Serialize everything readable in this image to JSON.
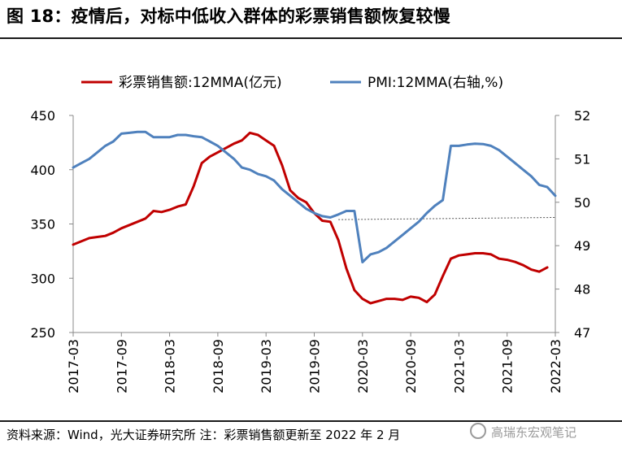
{
  "title": "图 18：疫情后，对标中低收入群体的彩票销售额恢复较慢",
  "source": "资料来源：Wind，光大证券研究所  注：彩票销售额更新至 2022 年 2 月",
  "watermark": "高瑞东宏观笔记",
  "chart_data": {
    "type": "line",
    "x_tick_labels": [
      "2017-03",
      "2017-09",
      "2018-03",
      "2018-09",
      "2019-03",
      "2019-09",
      "2020-03",
      "2020-09",
      "2021-03",
      "2021-09",
      "2022-03"
    ],
    "y_left": {
      "ylim": [
        250,
        450
      ],
      "ticks": [
        250,
        300,
        350,
        400,
        450
      ]
    },
    "y_right": {
      "ylim": [
        47,
        52
      ],
      "ticks": [
        47,
        48,
        49,
        50,
        51,
        52
      ]
    },
    "legend_position": "top",
    "grid": false,
    "reference_line": {
      "axis": "right",
      "from_y": 49.6,
      "to_y": 49.65,
      "style": "dotted"
    },
    "series": [
      {
        "name": "彩票销售额:12MMA(亿元)",
        "axis": "left",
        "color": "#c00000",
        "x": [
          "2017-03",
          "2017-04",
          "2017-05",
          "2017-06",
          "2017-07",
          "2017-08",
          "2017-09",
          "2017-10",
          "2017-11",
          "2017-12",
          "2018-01",
          "2018-02",
          "2018-03",
          "2018-04",
          "2018-05",
          "2018-06",
          "2018-07",
          "2018-08",
          "2018-09",
          "2018-10",
          "2018-11",
          "2018-12",
          "2019-01",
          "2019-02",
          "2019-03",
          "2019-04",
          "2019-05",
          "2019-06",
          "2019-07",
          "2019-08",
          "2019-09",
          "2019-10",
          "2019-11",
          "2019-12",
          "2020-01",
          "2020-02",
          "2020-03",
          "2020-04",
          "2020-05",
          "2020-06",
          "2020-07",
          "2020-08",
          "2020-09",
          "2020-10",
          "2020-11",
          "2020-12",
          "2021-01",
          "2021-02",
          "2021-03",
          "2021-04",
          "2021-05",
          "2021-06",
          "2021-07",
          "2021-08",
          "2021-09",
          "2021-10",
          "2021-11",
          "2021-12",
          "2022-01",
          "2022-02"
        ],
        "values": [
          331,
          334,
          337,
          338,
          339,
          342,
          346,
          349,
          352,
          355,
          362,
          361,
          363,
          366,
          368,
          385,
          406,
          412,
          416,
          420,
          424,
          427,
          434,
          432,
          427,
          422,
          404,
          381,
          374,
          370,
          360,
          353,
          352,
          335,
          309,
          289,
          281,
          277,
          279,
          281,
          281,
          280,
          283,
          282,
          278,
          285,
          302,
          318,
          321,
          322,
          323,
          323,
          322,
          318,
          317,
          315,
          312,
          308,
          306,
          310
        ]
      },
      {
        "name": "PMI:12MMA(右轴,%)",
        "axis": "right",
        "color": "#4f81bd",
        "x": [
          "2017-03",
          "2017-04",
          "2017-05",
          "2017-06",
          "2017-07",
          "2017-08",
          "2017-09",
          "2017-10",
          "2017-11",
          "2017-12",
          "2018-01",
          "2018-02",
          "2018-03",
          "2018-04",
          "2018-05",
          "2018-06",
          "2018-07",
          "2018-08",
          "2018-09",
          "2018-10",
          "2018-11",
          "2018-12",
          "2019-01",
          "2019-02",
          "2019-03",
          "2019-04",
          "2019-05",
          "2019-06",
          "2019-07",
          "2019-08",
          "2019-09",
          "2019-10",
          "2019-11",
          "2019-12",
          "2020-01",
          "2020-02",
          "2020-03",
          "2020-04",
          "2020-05",
          "2020-06",
          "2020-07",
          "2020-08",
          "2020-09",
          "2020-10",
          "2020-11",
          "2020-12",
          "2021-01",
          "2021-02",
          "2021-03",
          "2021-04",
          "2021-05",
          "2021-06",
          "2021-07",
          "2021-08",
          "2021-09",
          "2021-10",
          "2021-11",
          "2021-12",
          "2022-01",
          "2022-02",
          "2022-03"
        ],
        "values": [
          50.8,
          50.9,
          51.0,
          51.15,
          51.3,
          51.4,
          51.58,
          51.6,
          51.62,
          51.62,
          51.5,
          51.5,
          51.5,
          51.55,
          51.55,
          51.52,
          51.5,
          51.4,
          51.3,
          51.15,
          51.0,
          50.8,
          50.75,
          50.65,
          50.6,
          50.5,
          50.3,
          50.15,
          50.0,
          49.85,
          49.75,
          49.68,
          49.65,
          49.72,
          49.8,
          49.8,
          48.62,
          48.8,
          48.85,
          48.95,
          49.1,
          49.25,
          49.4,
          49.55,
          49.75,
          49.92,
          50.05,
          51.3,
          51.3,
          51.33,
          51.35,
          51.34,
          51.3,
          51.2,
          51.05,
          50.9,
          50.75,
          50.6,
          50.4,
          50.35,
          50.15
        ]
      }
    ]
  }
}
